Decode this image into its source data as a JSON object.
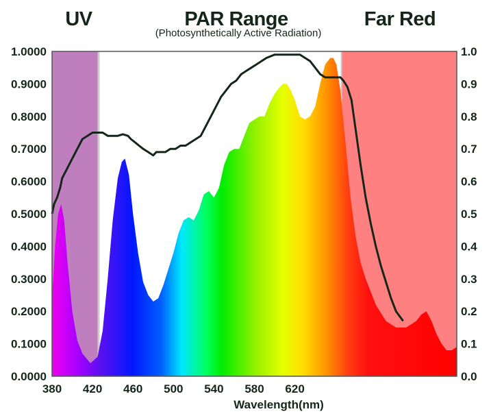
{
  "chart_data": {
    "type": "area",
    "headings": {
      "uv": "UV",
      "par": "PAR Range",
      "par_sub": "(Photosynthetically Active Radiation)",
      "far_red": "Far Red"
    },
    "xlabel": "Wavelength(nm)",
    "xlim": [
      380,
      780
    ],
    "x_ticks": [
      380,
      420,
      460,
      500,
      540,
      580,
      620
    ],
    "ylim": [
      0,
      1
    ],
    "y_ticks_left": [
      "0.0000",
      "0.1000",
      "0.2000",
      "0.3000",
      "0.4000",
      "0.5000",
      "0.6000",
      "0.7000",
      "0.8000",
      "0.9000",
      "1.0000"
    ],
    "y_ticks_right": [
      "0.0",
      "0.1",
      "0.2",
      "0.3",
      "0.4",
      "0.5",
      "0.6",
      "0.7",
      "0.8",
      "0.9",
      "1.0"
    ],
    "bands": [
      {
        "name": "UV",
        "from": 380,
        "to": 426,
        "color": "#bf7fbf"
      },
      {
        "name": "Far Red",
        "from": 666,
        "to": 780,
        "color": "#ff8080"
      }
    ],
    "series": [
      {
        "name": "Spectrum",
        "color": "spectral-gradient",
        "x": [
          380,
          383,
          386,
          389,
          392,
          395,
          400,
          405,
          410,
          418,
          425,
          430,
          435,
          440,
          445,
          449,
          452,
          456,
          460,
          465,
          470,
          475,
          480,
          485,
          490,
          495,
          500,
          505,
          510,
          515,
          520,
          525,
          530,
          535,
          540,
          545,
          550,
          555,
          560,
          565,
          570,
          575,
          580,
          585,
          590,
          595,
          600,
          605,
          608,
          612,
          616,
          620,
          625,
          630,
          635,
          640,
          645,
          650,
          655,
          658,
          661,
          665,
          670,
          675,
          680,
          685,
          690,
          700,
          710,
          720,
          730,
          740,
          745,
          750,
          755,
          760,
          765,
          770,
          775,
          780
        ],
        "values": [
          0.24,
          0.4,
          0.5,
          0.53,
          0.48,
          0.36,
          0.2,
          0.11,
          0.07,
          0.04,
          0.06,
          0.14,
          0.3,
          0.48,
          0.61,
          0.66,
          0.67,
          0.62,
          0.5,
          0.38,
          0.29,
          0.25,
          0.23,
          0.24,
          0.28,
          0.33,
          0.38,
          0.44,
          0.48,
          0.49,
          0.48,
          0.51,
          0.56,
          0.57,
          0.55,
          0.58,
          0.65,
          0.69,
          0.7,
          0.7,
          0.74,
          0.78,
          0.79,
          0.8,
          0.8,
          0.84,
          0.87,
          0.89,
          0.9,
          0.9,
          0.88,
          0.85,
          0.8,
          0.79,
          0.8,
          0.83,
          0.9,
          0.96,
          0.98,
          0.98,
          0.96,
          0.88,
          0.72,
          0.55,
          0.43,
          0.35,
          0.3,
          0.22,
          0.17,
          0.15,
          0.15,
          0.17,
          0.19,
          0.2,
          0.17,
          0.13,
          0.1,
          0.08,
          0.08,
          0.09
        ]
      },
      {
        "name": "Response",
        "color": "#14261a",
        "x": [
          380,
          382,
          385,
          388,
          390,
          395,
          400,
          405,
          410,
          415,
          420,
          425,
          430,
          435,
          440,
          445,
          450,
          455,
          458,
          462,
          466,
          470,
          475,
          480,
          483,
          487,
          492,
          497,
          502,
          507,
          512,
          517,
          522,
          527,
          532,
          537,
          542,
          547,
          552,
          557,
          562,
          567,
          572,
          577,
          582,
          587,
          592,
          600,
          610,
          620,
          625,
          630,
          635,
          640,
          645,
          650,
          655,
          660,
          665,
          668,
          672,
          676,
          680,
          685,
          690,
          695,
          700,
          705,
          710,
          715,
          720,
          727
        ],
        "values": [
          0.5,
          0.53,
          0.55,
          0.58,
          0.61,
          0.64,
          0.67,
          0.7,
          0.73,
          0.74,
          0.75,
          0.75,
          0.75,
          0.74,
          0.74,
          0.74,
          0.745,
          0.74,
          0.73,
          0.72,
          0.71,
          0.7,
          0.69,
          0.68,
          0.69,
          0.69,
          0.69,
          0.7,
          0.7,
          0.71,
          0.71,
          0.72,
          0.73,
          0.74,
          0.77,
          0.8,
          0.83,
          0.86,
          0.88,
          0.9,
          0.91,
          0.93,
          0.94,
          0.95,
          0.96,
          0.97,
          0.98,
          0.99,
          0.99,
          0.99,
          0.99,
          0.98,
          0.97,
          0.95,
          0.93,
          0.92,
          0.92,
          0.92,
          0.92,
          0.91,
          0.89,
          0.85,
          0.76,
          0.65,
          0.55,
          0.47,
          0.4,
          0.34,
          0.29,
          0.24,
          0.2,
          0.17
        ]
      }
    ]
  }
}
